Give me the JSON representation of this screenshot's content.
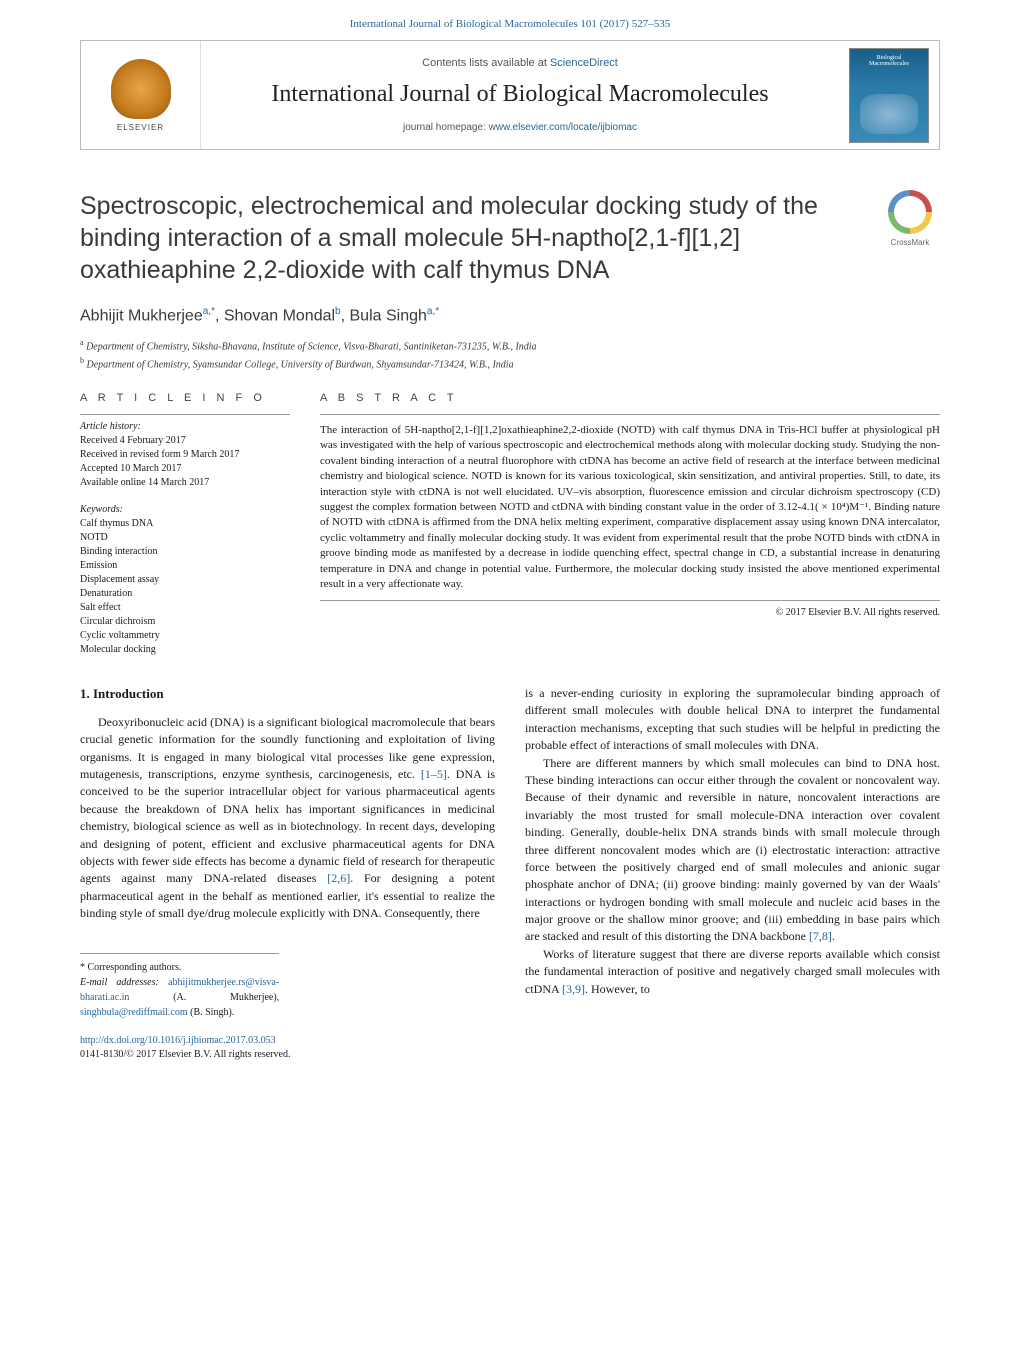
{
  "header": {
    "citation": "International Journal of Biological Macromolecules 101 (2017) 527–535",
    "contents_available": "Contents lists available at ",
    "contents_link": "ScienceDirect",
    "journal_name": "International Journal of Biological Macromolecules",
    "homepage_prefix": "journal homepage: ",
    "homepage_url": "www.elsevier.com/locate/ijbiomac",
    "publisher_logo_text": "ELSEVIER",
    "cover_text_1": "Biological",
    "cover_text_2": "Macromolecules",
    "crossmark_label": "CrossMark"
  },
  "article": {
    "title": "Spectroscopic, electrochemical and molecular docking study of the binding interaction of a small molecule 5H-naptho[2,1-f][1,2] oxathieaphine 2,2-dioxide with calf thymus DNA",
    "authors_html": "Abhijit Mukherjee",
    "author1": "Abhijit Mukherjee",
    "author1_sup": "a,*",
    "author2": "Shovan Mondal",
    "author2_sup": "b",
    "author3": "Bula Singh",
    "author3_sup": "a,*",
    "affiliations": {
      "a_sup": "a",
      "a": " Department of Chemistry, Siksha-Bhavana, Institute of Science, Visva-Bharati, Santiniketan-731235, W.B., India",
      "b_sup": "b",
      "b": " Department of Chemistry, Syamsundar College, University of Burdwan, Shyamsundar-713424, W.B., India"
    }
  },
  "article_info": {
    "section_label": "A R T I C L E   I N F O",
    "history_label": "Article history:",
    "received": "Received 4 February 2017",
    "revised": "Received in revised form 9 March 2017",
    "accepted": "Accepted 10 March 2017",
    "online": "Available online 14 March 2017",
    "keywords_label": "Keywords:",
    "keywords": [
      "Calf thymus DNA",
      "NOTD",
      "Binding interaction",
      "Emission",
      "Displacement assay",
      "Denaturation",
      "Salt effect",
      "Circular dichroism",
      "Cyclic voltammetry",
      "Molecular docking"
    ]
  },
  "abstract": {
    "label": "A B S T R A C T",
    "body": "The interaction of 5H-naptho[2,1-f][1,2]oxathieaphine2,2-dioxide (NOTD) with calf thymus DNA in Tris-HCl buffer at physiological pH was investigated with the help of various spectroscopic and electrochemical methods along with molecular docking study. Studying the non-covalent binding interaction of a neutral fluorophore with ctDNA has become an active field of research at the interface between medicinal chemistry and biological science. NOTD is known for its various toxicological, skin sensitization, and antiviral properties. Still, to date, its interaction style with ctDNA is not well elucidated. UV–vis absorption, fluorescence emission and circular dichroism spectroscopy (CD) suggest the complex formation between NOTD and ctDNA with binding constant value in the order of 3.12-4.1( × 10⁴)M⁻¹. Binding nature of NOTD with ctDNA is affirmed from the DNA helix melting experiment, comparative displacement assay using known DNA intercalator, cyclic voltammetry and finally molecular docking study. It was evident from experimental result that the probe NOTD binds with ctDNA in groove binding mode as manifested by a decrease in iodide quenching effect, spectral change in CD, a substantial increase in denaturing temperature in DNA and change in potential value. Furthermore, the molecular docking study insisted the above mentioned experimental result in a very affectionate way.",
    "copyright": "© 2017 Elsevier B.V. All rights reserved."
  },
  "body": {
    "section_num": "1.",
    "section_title": "Introduction",
    "col1_p1": "Deoxyribonucleic acid (DNA) is a significant biological macromolecule that bears crucial genetic information for the soundly functioning and exploitation of living organisms. It is engaged in many biological vital processes like gene expression, mutagenesis, transcriptions, enzyme synthesis, carcinogenesis, etc. ",
    "col1_ref1": "[1–5]",
    "col1_p1b": ". DNA is conceived to be the superior intracellular object for various pharmaceutical agents because the breakdown of DNA helix has important significances in medicinal chemistry, biological science as well as in biotechnology. In recent days, developing and designing of potent, efficient and exclusive pharmaceutical agents for DNA objects with fewer side effects has become a dynamic field of research for therapeutic agents against many DNA-related diseases ",
    "col1_ref2": "[2,6]",
    "col1_p1c": ". For designing a potent pharmaceutical agent in the behalf as mentioned earlier, it's essential to realize the binding style of small dye/drug molecule explicitly with DNA. Consequently, there",
    "col2_p1": "is a never-ending curiosity in exploring the supramolecular binding approach of different small molecules with double helical DNA to interpret the fundamental interaction mechanisms, excepting that such studies will be helpful in predicting the probable effect of interactions of small molecules with DNA.",
    "col2_p2": "There are different manners by which small molecules can bind to DNA host. These binding interactions can occur either through the covalent or noncovalent way. Because of their dynamic and reversible in nature, noncovalent interactions are invariably the most trusted for small molecule-DNA interaction over covalent binding. Generally, double-helix DNA strands binds with small molecule through three different noncovalent modes which are (i) electrostatic interaction: attractive force between the positively charged end of small molecules and anionic sugar phosphate anchor of DNA; (ii) groove binding: mainly governed by van der Waals' interactions or hydrogen bonding with small molecule and nucleic acid bases in the major groove or the shallow minor groove; and (iii) embedding in base pairs which are stacked and result of this distorting the DNA backbone ",
    "col2_ref1": "[7,8]",
    "col2_p2b": ".",
    "col2_p3": "Works of literature suggest that there are diverse reports available which consist the fundamental interaction of positive and negatively charged small molecules with ctDNA ",
    "col2_ref2": "[3,9]",
    "col2_p3b": ". However, to"
  },
  "footnotes": {
    "corresponding_marker": "*",
    "corresponding": " Corresponding authors.",
    "email_label": "E-mail addresses: ",
    "email1": "abhijitmukherjee.rs@visva-bharati.ac.in",
    "email1_name": " (A. Mukherjee), ",
    "email2": "singhbula@rediffmail.com",
    "email2_name": " (B. Singh)."
  },
  "doi": {
    "url": "http://dx.doi.org/10.1016/j.ijbiomac.2017.03.053",
    "issn_line": "0141-8130/© 2017 Elsevier B.V. All rights reserved."
  },
  "colors": {
    "link": "#2a6496",
    "text": "#1a1a1a",
    "border": "#999999",
    "background": "#ffffff"
  },
  "typography": {
    "body_font": "Georgia, serif",
    "sans_font": "Helvetica, Arial, sans-serif",
    "title_fontsize": 25,
    "journal_fontsize": 24,
    "authors_fontsize": 16,
    "body_fontsize": 12,
    "abstract_fontsize": 11,
    "small_fontsize": 10
  }
}
